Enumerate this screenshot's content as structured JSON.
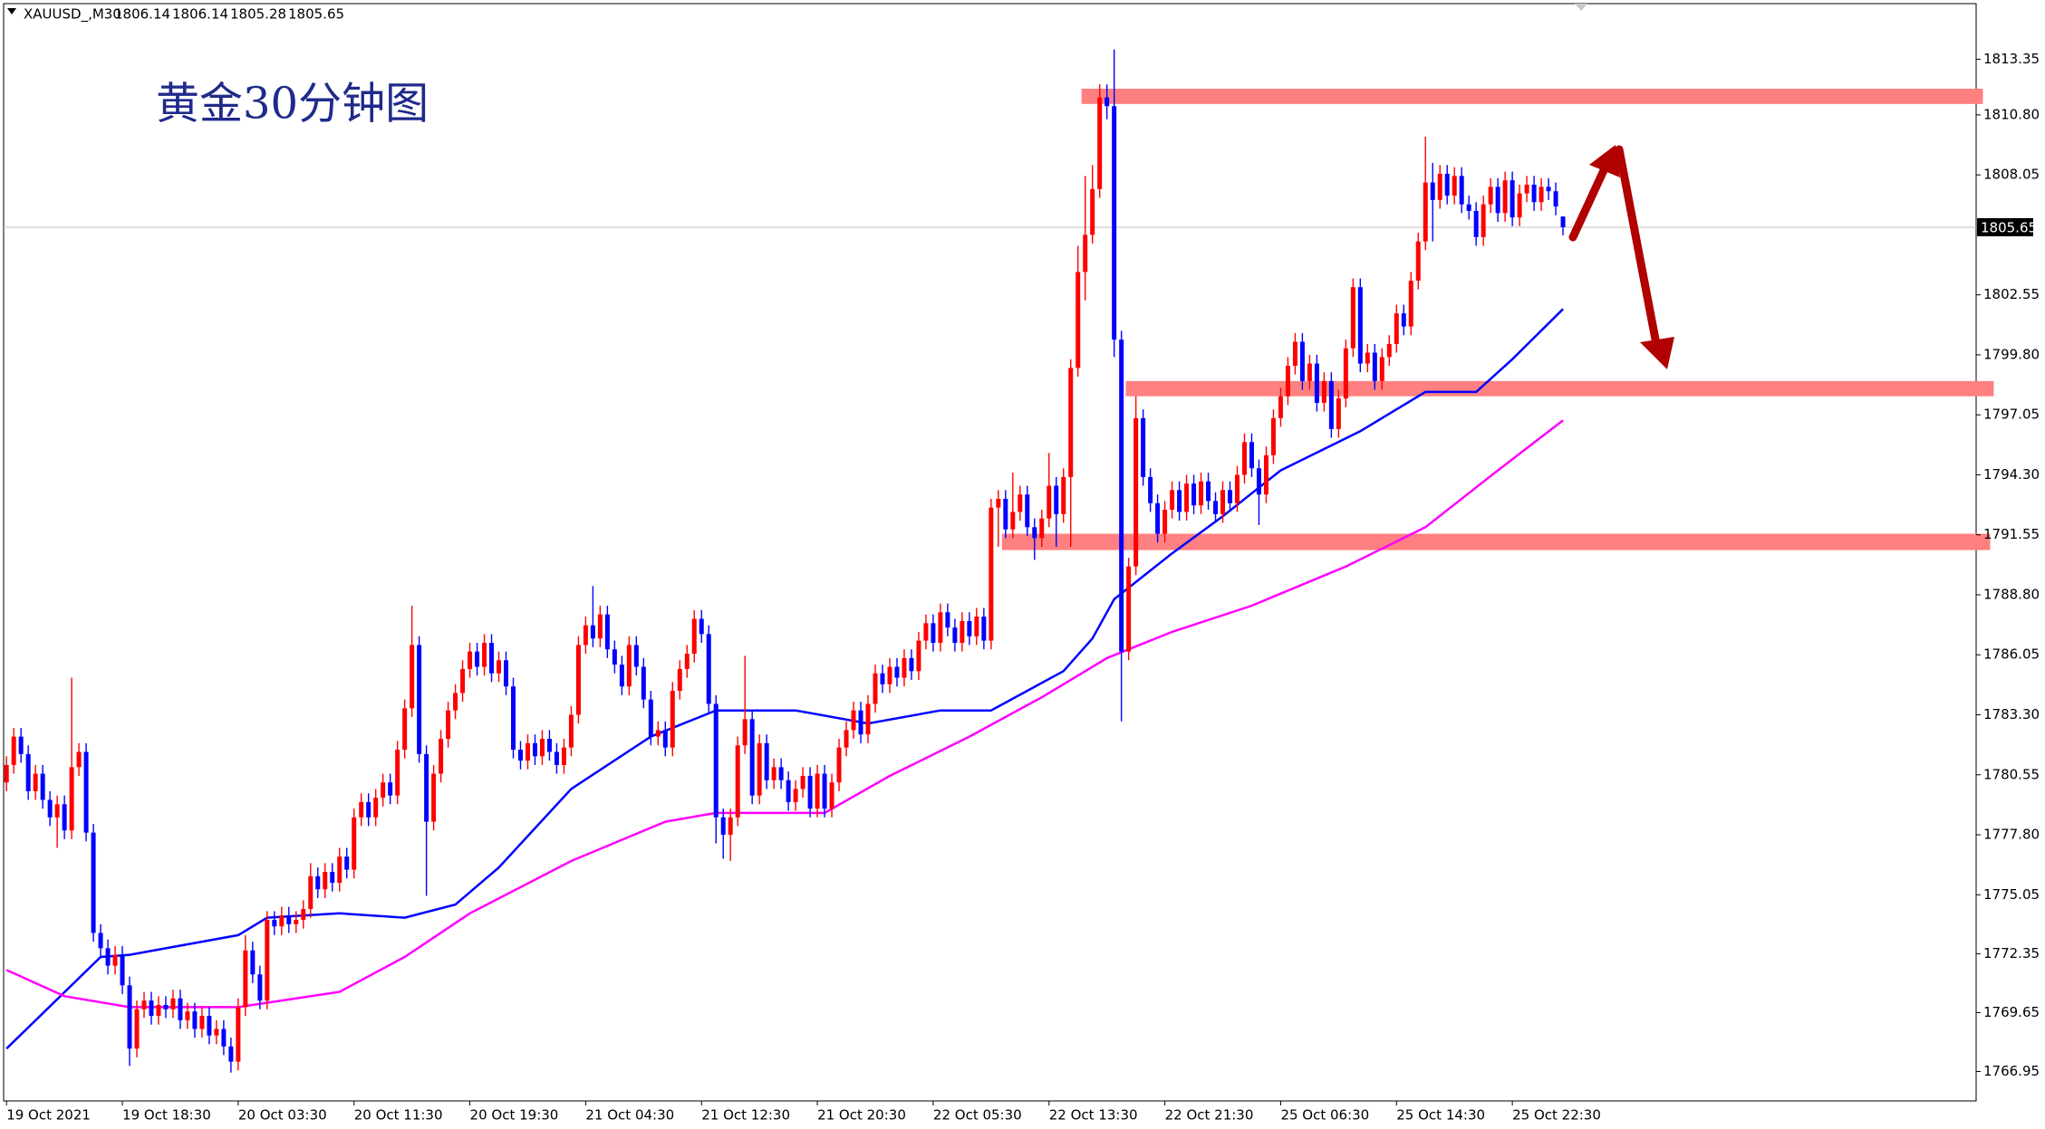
{
  "chart_data": {
    "type": "candlestick",
    "header": {
      "symbol": "XAUUSD_,M30",
      "ohlc": [
        1806.14,
        1806.14,
        1805.28,
        1805.65
      ]
    },
    "title": "黄金30分钟图",
    "current_price": 1805.65,
    "ylim": [
      1765.6,
      1815.9
    ],
    "yticks": [
      1766.95,
      1769.65,
      1772.35,
      1775.05,
      {
        "value": 1777.8,
        "label": "1777.80"
      },
      1780.55,
      {
        "value": 1783.3,
        "label": "1783.30"
      },
      1786.05,
      {
        "value": 1788.8,
        "label": "1788.80"
      },
      1791.55,
      {
        "value": 1794.3,
        "label": "1794.30"
      },
      1797.05,
      {
        "value": 1799.8,
        "label": "1799.80"
      },
      1802.55,
      1808.05,
      {
        "value": 1810.8,
        "label": "1810.80"
      },
      1813.35
    ],
    "up_color": "#ff0000",
    "down_color": "#0000ff",
    "categories": [
      "19 Oct 2021",
      null,
      null,
      null,
      null,
      null,
      null,
      null,
      null,
      null,
      null,
      null,
      null,
      null,
      null,
      null,
      "19 Oct 18:30",
      null,
      null,
      null,
      null,
      null,
      null,
      null,
      null,
      null,
      null,
      null,
      null,
      null,
      null,
      null,
      "20 Oct 03:30",
      null,
      null,
      null,
      null,
      null,
      null,
      null,
      null,
      null,
      null,
      null,
      null,
      null,
      null,
      null,
      "20 Oct 11:30",
      null,
      null,
      null,
      null,
      null,
      null,
      null,
      null,
      null,
      null,
      null,
      null,
      null,
      null,
      null,
      "20 Oct 19:30",
      null,
      null,
      null,
      null,
      null,
      null,
      null,
      null,
      null,
      null,
      null,
      null,
      null,
      null,
      null,
      "21 Oct 04:30",
      null,
      null,
      null,
      null,
      null,
      null,
      null,
      null,
      null,
      null,
      null,
      null,
      null,
      null,
      null,
      "21 Oct 12:30",
      null,
      null,
      null,
      null,
      null,
      null,
      null,
      null,
      null,
      null,
      null,
      null,
      null,
      null,
      null,
      "21 Oct 20:30",
      null,
      null,
      null,
      null,
      null,
      null,
      null,
      null,
      null,
      null,
      null,
      null,
      null,
      null,
      null,
      "22 Oct 05:30",
      null,
      null,
      null,
      null,
      null,
      null,
      null,
      null,
      null,
      null,
      null,
      null,
      null,
      null,
      null,
      "22 Oct 13:30",
      null,
      null,
      null,
      null,
      null,
      null,
      null,
      null,
      null,
      null,
      null,
      null,
      null,
      null,
      null,
      "22 Oct 21:30",
      null,
      null,
      null,
      null,
      null,
      null,
      null,
      null,
      null,
      null,
      null,
      null,
      null,
      null,
      null,
      "25 Oct 06:30",
      null,
      null,
      null,
      null,
      null,
      null,
      null,
      null,
      null,
      null,
      null,
      null,
      null,
      null,
      null,
      "25 Oct 14:30",
      null,
      null,
      null,
      null,
      null,
      null,
      null,
      null,
      null,
      null,
      null,
      null,
      null,
      null,
      null,
      "25 Oct 22:30",
      null,
      null,
      null,
      null,
      null,
      null,
      null
    ],
    "open": [
      1780.2,
      1781.0,
      1782.3,
      1781.5,
      1779.8,
      1780.6,
      1779.4,
      1778.6,
      1779.2,
      1778.0,
      1780.9,
      1781.6,
      1777.9,
      1773.3,
      1772.6,
      1771.8,
      1772.3,
      1770.9,
      1768.0,
      1769.8,
      1770.2,
      1769.5,
      1770.0,
      1769.8,
      1770.3,
      1769.3,
      1769.7,
      1768.9,
      1769.5,
      1768.6,
      1768.9,
      1768.1,
      1767.4,
      1769.9,
      1772.5,
      1771.4,
      1770.2,
      1773.9,
      1773.6,
      1774.1,
      1773.7,
      1773.9,
      1774.4,
      1775.9,
      1775.3,
      1776.1,
      1775.6,
      1776.8,
      1776.2,
      1778.6,
      1779.3,
      1778.6,
      1779.5,
      1780.2,
      1779.6,
      1781.7,
      1783.6,
      1786.5,
      1781.5,
      1778.4,
      1780.6,
      1782.2,
      1783.5,
      1784.3,
      1785.4,
      1786.2,
      1785.5,
      1786.6,
      1785.2,
      1785.8,
      1784.6,
      1781.7,
      1781.2,
      1782.0,
      1781.4,
      1782.2,
      1781.6,
      1781.0,
      1781.8,
      1783.3,
      1786.5,
      1787.4,
      1786.8,
      1787.9,
      1786.3,
      1785.6,
      1784.6,
      1786.5,
      1785.5,
      1784.0,
      1782.3,
      1782.6,
      1781.8,
      1784.4,
      1785.4,
      1786.1,
      1787.7,
      1787.0,
      1783.8,
      1778.6,
      1777.8,
      1778.6,
      1781.9,
      1783.1,
      1779.6,
      1782.0,
      1780.3,
      1780.9,
      1780.3,
      1779.3,
      1779.9,
      1780.5,
      1779.0,
      1780.6,
      1779.0,
      1780.2,
      1781.8,
      1782.6,
      1783.5,
      1782.4,
      1783.8,
      1785.2,
      1784.7,
      1785.5,
      1785.0,
      1785.9,
      1785.3,
      1786.7,
      1787.5,
      1786.6,
      1788.0,
      1787.3,
      1786.6,
      1787.6,
      1786.9,
      1787.8,
      1786.7,
      1792.8,
      1793.2,
      1791.8,
      1792.6,
      1793.4,
      1791.9,
      1791.4,
      1792.3,
      1793.8,
      1792.5,
      1794.2,
      1799.2,
      1803.6,
      1805.3,
      1807.4,
      1811.6,
      1811.2,
      1800.5,
      1786.2,
      1790.1,
      1796.9,
      1794.2,
      1793.0,
      1791.6,
      1792.7,
      1793.6,
      1792.6,
      1793.9,
      1792.9,
      1794.0,
      1793.1,
      1792.5,
      1793.6,
      1793.0,
      1794.3,
      1795.8,
      1794.6,
      1793.4,
      1795.2,
      1796.9,
      1797.9,
      1799.3,
      1800.4,
      1798.6,
      1799.4,
      1797.6,
      1798.6,
      1796.4,
      1797.8,
      1800.1,
      1802.9,
      1799.4,
      1799.9,
      1798.6,
      1799.7,
      1800.3,
      1801.7,
      1801.1,
      1803.2,
      1805.0,
      1807.7,
      1806.9,
      1808.1,
      1807.1,
      1808.0,
      1806.7,
      1806.4,
      1805.2,
      1806.7,
      1807.5,
      1806.3,
      1807.8,
      1806.1,
      1807.2,
      1807.6,
      1806.8,
      1807.5,
      1807.3,
      1806.14
    ],
    "high": [
      1781.4,
      1782.7,
      1782.7,
      1781.9,
      1781.0,
      1781.0,
      1779.8,
      1779.6,
      1779.6,
      1785.0,
      1782.0,
      1782.0,
      1778.3,
      1773.7,
      1773.0,
      1772.7,
      1772.7,
      1771.3,
      1770.2,
      1770.6,
      1770.6,
      1770.4,
      1770.4,
      1770.7,
      1770.7,
      1770.1,
      1770.1,
      1769.9,
      1769.9,
      1769.3,
      1769.3,
      1768.5,
      1770.3,
      1773.2,
      1772.9,
      1771.8,
      1774.3,
      1774.3,
      1774.5,
      1774.5,
      1774.3,
      1774.8,
      1776.5,
      1776.3,
      1776.5,
      1776.5,
      1777.2,
      1777.2,
      1779.0,
      1779.7,
      1779.7,
      1779.9,
      1780.6,
      1780.6,
      1782.1,
      1784.0,
      1788.3,
      1786.9,
      1781.9,
      1781.0,
      1782.6,
      1783.9,
      1784.7,
      1785.8,
      1786.6,
      1786.6,
      1787.0,
      1787.0,
      1786.2,
      1786.2,
      1785.0,
      1782.1,
      1782.4,
      1782.4,
      1782.6,
      1782.6,
      1782.0,
      1782.2,
      1783.7,
      1786.9,
      1787.8,
      1789.2,
      1788.3,
      1788.3,
      1786.7,
      1786.0,
      1786.9,
      1786.9,
      1785.9,
      1784.4,
      1783.0,
      1783.0,
      1784.8,
      1785.8,
      1786.5,
      1788.1,
      1788.1,
      1787.4,
      1784.2,
      1779.0,
      1779.0,
      1782.3,
      1786.0,
      1783.5,
      1782.4,
      1782.4,
      1781.3,
      1781.3,
      1780.7,
      1780.3,
      1780.9,
      1780.9,
      1781.0,
      1781.0,
      1780.6,
      1782.2,
      1783.0,
      1783.9,
      1783.9,
      1784.2,
      1785.6,
      1785.6,
      1785.9,
      1785.9,
      1786.3,
      1786.3,
      1787.1,
      1787.9,
      1787.9,
      1788.4,
      1788.4,
      1787.7,
      1788.0,
      1788.0,
      1788.2,
      1788.2,
      1793.2,
      1793.6,
      1793.6,
      1794.4,
      1793.8,
      1793.8,
      1792.3,
      1792.7,
      1795.3,
      1794.2,
      1794.6,
      1799.6,
      1804.8,
      1808.0,
      1808.5,
      1812.2,
      1812.2,
      1813.8,
      1800.9,
      1790.5,
      1797.9,
      1797.3,
      1794.6,
      1793.4,
      1793.1,
      1794.0,
      1794.0,
      1794.3,
      1794.3,
      1794.4,
      1794.4,
      1793.5,
      1794.0,
      1794.0,
      1794.7,
      1796.2,
      1796.2,
      1795.0,
      1795.6,
      1797.3,
      1798.3,
      1799.7,
      1800.8,
      1800.8,
      1799.8,
      1799.8,
      1799.0,
      1799.0,
      1798.2,
      1800.5,
      1803.3,
      1803.3,
      1800.3,
      1800.3,
      1800.1,
      1800.7,
      1802.1,
      1802.1,
      1803.6,
      1805.4,
      1809.8,
      1808.6,
      1808.5,
      1808.5,
      1808.4,
      1808.4,
      1807.1,
      1806.8,
      1807.1,
      1807.9,
      1807.9,
      1808.2,
      1808.2,
      1807.6,
      1808.0,
      1808.0,
      1807.9,
      1807.9,
      1807.7,
      1806.14
    ],
    "low": [
      1779.8,
      1780.6,
      1781.1,
      1779.4,
      1779.4,
      1779.0,
      1778.2,
      1777.2,
      1777.6,
      1777.6,
      1780.5,
      1777.5,
      1772.9,
      1772.2,
      1771.4,
      1771.4,
      1770.5,
      1767.2,
      1767.6,
      1769.4,
      1769.1,
      1769.1,
      1769.4,
      1769.4,
      1768.9,
      1768.9,
      1768.5,
      1768.5,
      1768.2,
      1768.2,
      1767.7,
      1766.9,
      1767.0,
      1769.5,
      1771.0,
      1769.8,
      1769.8,
      1773.2,
      1773.2,
      1773.3,
      1773.3,
      1773.5,
      1774.0,
      1774.9,
      1774.9,
      1775.2,
      1775.2,
      1775.8,
      1775.8,
      1778.2,
      1778.2,
      1778.2,
      1779.1,
      1779.2,
      1779.2,
      1781.3,
      1783.2,
      1781.1,
      1775.0,
      1778.0,
      1780.2,
      1781.8,
      1783.1,
      1783.9,
      1785.0,
      1785.1,
      1785.1,
      1784.8,
      1784.8,
      1784.2,
      1781.3,
      1780.8,
      1780.8,
      1781.0,
      1781.0,
      1781.2,
      1780.6,
      1780.6,
      1781.4,
      1782.9,
      1786.1,
      1786.4,
      1786.4,
      1785.9,
      1785.2,
      1784.2,
      1784.2,
      1785.1,
      1783.6,
      1781.9,
      1781.9,
      1781.4,
      1781.4,
      1784.0,
      1785.0,
      1785.7,
      1786.6,
      1783.4,
      1777.4,
      1776.7,
      1776.6,
      1778.2,
      1781.5,
      1779.2,
      1779.2,
      1779.9,
      1779.9,
      1779.9,
      1778.9,
      1778.9,
      1779.5,
      1778.6,
      1778.6,
      1778.6,
      1778.6,
      1779.8,
      1781.4,
      1782.2,
      1782.0,
      1782.0,
      1783.4,
      1784.3,
      1784.3,
      1784.6,
      1784.6,
      1784.9,
      1784.9,
      1786.3,
      1786.2,
      1786.2,
      1786.9,
      1786.2,
      1786.2,
      1786.5,
      1786.5,
      1786.3,
      1786.3,
      1791.0,
      1791.4,
      1791.4,
      1792.2,
      1791.5,
      1790.4,
      1791.0,
      1791.9,
      1791.0,
      1792.1,
      1791.0,
      1798.8,
      1802.3,
      1804.9,
      1807.0,
      1810.6,
      1799.7,
      1783.0,
      1785.8,
      1789.7,
      1793.8,
      1792.6,
      1791.2,
      1791.2,
      1792.3,
      1792.2,
      1792.2,
      1792.5,
      1792.5,
      1792.7,
      1792.1,
      1792.1,
      1792.6,
      1792.6,
      1793.9,
      1794.2,
      1792.0,
      1793.0,
      1794.8,
      1796.5,
      1797.5,
      1798.9,
      1798.2,
      1798.2,
      1797.2,
      1797.2,
      1796.0,
      1796.0,
      1797.4,
      1799.7,
      1799.0,
      1799.0,
      1798.2,
      1798.2,
      1799.3,
      1799.9,
      1800.7,
      1800.7,
      1802.8,
      1804.6,
      1805.0,
      1806.5,
      1806.7,
      1806.7,
      1806.3,
      1806.0,
      1804.8,
      1804.8,
      1806.3,
      1805.9,
      1805.9,
      1805.7,
      1805.7,
      1806.8,
      1806.4,
      1806.4,
      1806.9,
      1806.2,
      1805.28
    ],
    "close": [
      1781.0,
      1782.3,
      1781.5,
      1779.8,
      1780.6,
      1779.4,
      1778.6,
      1779.2,
      1778.0,
      1780.9,
      1781.6,
      1777.9,
      1773.3,
      1772.6,
      1771.8,
      1772.3,
      1770.9,
      1768.0,
      1769.8,
      1770.2,
      1769.5,
      1770.0,
      1769.8,
      1770.3,
      1769.3,
      1769.7,
      1768.9,
      1769.5,
      1768.6,
      1768.9,
      1768.1,
      1767.4,
      1769.9,
      1772.5,
      1771.4,
      1770.2,
      1773.9,
      1773.6,
      1774.1,
      1773.7,
      1773.9,
      1774.4,
      1775.9,
      1775.3,
      1776.1,
      1775.6,
      1776.8,
      1776.2,
      1778.6,
      1779.3,
      1778.6,
      1779.5,
      1780.2,
      1779.6,
      1781.7,
      1783.6,
      1786.5,
      1781.5,
      1778.4,
      1780.6,
      1782.2,
      1783.5,
      1784.3,
      1785.4,
      1786.2,
      1785.5,
      1786.6,
      1785.2,
      1785.8,
      1784.6,
      1781.7,
      1781.2,
      1782.0,
      1781.4,
      1782.2,
      1781.6,
      1781.0,
      1781.8,
      1783.3,
      1786.5,
      1787.4,
      1786.8,
      1787.9,
      1786.3,
      1785.6,
      1784.6,
      1786.5,
      1785.5,
      1784.0,
      1782.3,
      1782.6,
      1781.8,
      1784.4,
      1785.4,
      1786.1,
      1787.7,
      1787.0,
      1783.8,
      1778.6,
      1777.8,
      1778.6,
      1781.9,
      1783.1,
      1779.6,
      1782.0,
      1780.3,
      1780.9,
      1780.3,
      1779.3,
      1779.9,
      1780.5,
      1779.0,
      1780.6,
      1779.0,
      1780.2,
      1781.8,
      1782.6,
      1783.5,
      1782.4,
      1783.8,
      1785.2,
      1784.7,
      1785.5,
      1785.0,
      1785.9,
      1785.3,
      1786.7,
      1787.5,
      1786.6,
      1788.0,
      1787.3,
      1786.6,
      1787.6,
      1786.9,
      1787.8,
      1786.7,
      1792.8,
      1793.2,
      1791.8,
      1792.6,
      1793.4,
      1791.9,
      1791.4,
      1792.3,
      1793.8,
      1792.5,
      1794.2,
      1799.2,
      1803.6,
      1805.3,
      1807.4,
      1811.6,
      1811.2,
      1800.5,
      1786.2,
      1790.1,
      1796.9,
      1794.2,
      1793.0,
      1791.6,
      1792.7,
      1793.6,
      1792.6,
      1793.9,
      1792.9,
      1794.0,
      1793.1,
      1792.5,
      1793.6,
      1793.0,
      1794.3,
      1795.8,
      1794.6,
      1793.4,
      1795.2,
      1796.9,
      1797.9,
      1799.3,
      1800.4,
      1798.6,
      1799.4,
      1797.6,
      1798.6,
      1796.4,
      1797.8,
      1800.1,
      1802.9,
      1799.4,
      1799.9,
      1798.6,
      1799.7,
      1800.3,
      1801.7,
      1801.1,
      1803.2,
      1805.0,
      1807.7,
      1806.9,
      1808.1,
      1807.1,
      1808.0,
      1806.7,
      1806.4,
      1805.2,
      1806.7,
      1807.5,
      1806.3,
      1807.8,
      1806.1,
      1807.2,
      1807.6,
      1806.8,
      1807.5,
      1807.3,
      1806.6,
      1805.65
    ],
    "lines": [
      {
        "color": "#0000ff",
        "x": [
          0,
          13,
          17,
          32,
          36,
          46,
          55,
          62,
          68,
          78,
          89,
          98,
          109,
          119,
          129,
          136,
          146,
          150,
          153,
          161,
          168,
          176,
          187,
          196,
          203,
          208,
          215
        ],
        "values": [
          1768.0,
          1772.2,
          1772.3,
          1773.2,
          1774.0,
          1774.2,
          1774.0,
          1774.6,
          1776.3,
          1779.9,
          1782.3,
          1783.5,
          1783.5,
          1782.9,
          1783.5,
          1783.5,
          1785.3,
          1786.8,
          1788.6,
          1790.7,
          1792.4,
          1794.5,
          1796.3,
          1798.1,
          1798.1,
          1799.6,
          1801.9
        ]
      },
      {
        "color": "#ff00ff",
        "x": [
          0,
          8,
          17,
          32,
          46,
          55,
          64,
          78,
          91,
          98,
          113,
          122,
          133,
          143,
          152,
          161,
          172,
          185,
          196,
          206,
          215
        ],
        "values": [
          1771.6,
          1770.4,
          1769.9,
          1769.9,
          1770.6,
          1772.2,
          1774.2,
          1776.6,
          1778.4,
          1778.8,
          1778.8,
          1780.5,
          1782.3,
          1784.1,
          1785.9,
          1787.1,
          1788.3,
          1790.1,
          1791.9,
          1794.5,
          1796.8
        ]
      }
    ],
    "zones": [
      {
        "x": [
          148.5,
          273
        ],
        "top": 1812.0,
        "bottom": 1811.3,
        "color": "#ff8080"
      },
      {
        "x": [
          154.6,
          274.5
        ],
        "top": 1798.6,
        "bottom": 1797.9,
        "color": "#ff8080"
      },
      {
        "x": [
          137.5,
          274
        ],
        "top": 1791.6,
        "bottom": 1790.85,
        "color": "#ff8080"
      }
    ]
  }
}
